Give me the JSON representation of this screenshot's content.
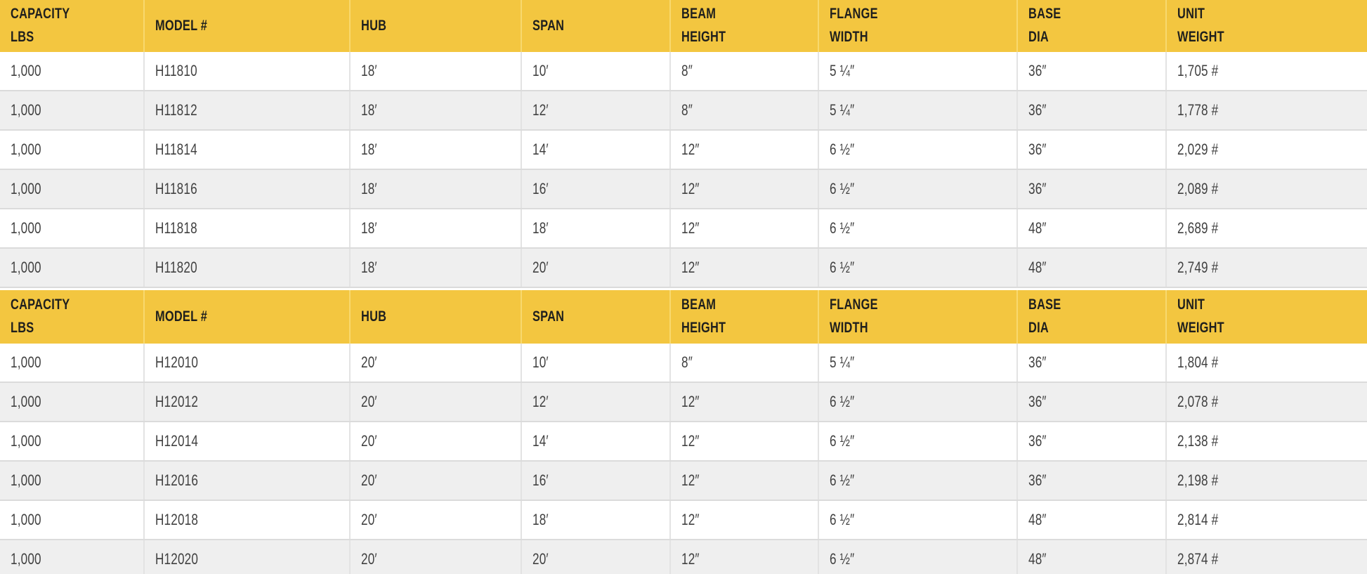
{
  "colors": {
    "header_bg": "#F3C640",
    "header_text": "#1F1F1D",
    "row_bg": "#FFFFFF",
    "row_alt_bg": "#EFEFEF",
    "cell_text": "#414141",
    "grid_line": "#DBDBDB"
  },
  "table": {
    "columns": [
      {
        "id": "capacity",
        "label": "CAPACITY\nLBS"
      },
      {
        "id": "model",
        "label": "MODEL #"
      },
      {
        "id": "hub",
        "label": "HUB"
      },
      {
        "id": "span",
        "label": "SPAN"
      },
      {
        "id": "beam-height",
        "label": "BEAM\nHEIGHT"
      },
      {
        "id": "flange-width",
        "label": "FLANGE\nWIDTH"
      },
      {
        "id": "base-dia",
        "label": "BASE\nDIA"
      },
      {
        "id": "unit-weight",
        "label": "UNIT\nWEIGHT"
      }
    ],
    "sections": [
      {
        "rows": [
          [
            "1,000",
            "H11810",
            "18′",
            "10′",
            "8″",
            "5 ¼″",
            "36″",
            "1,705 #"
          ],
          [
            "1,000",
            "H11812",
            "18′",
            "12′",
            "8″",
            "5 ¼″",
            "36″",
            "1,778 #"
          ],
          [
            "1,000",
            "H11814",
            "18′",
            "14′",
            "12″",
            "6 ½″",
            "36″",
            "2,029 #"
          ],
          [
            "1,000",
            "H11816",
            "18′",
            "16′",
            "12″",
            "6 ½″",
            "36″",
            "2,089 #"
          ],
          [
            "1,000",
            "H11818",
            "18′",
            "18′",
            "12″",
            "6 ½″",
            "48″",
            "2,689 #"
          ],
          [
            "1,000",
            "H11820",
            "18′",
            "20′",
            "12″",
            "6 ½″",
            "48″",
            "2,749 #"
          ]
        ]
      },
      {
        "rows": [
          [
            "1,000",
            "H12010",
            "20′",
            "10′",
            "8″",
            "5 ¼″",
            "36″",
            "1,804 #"
          ],
          [
            "1,000",
            "H12012",
            "20′",
            "12′",
            "12″",
            "6 ½″",
            "36″",
            "2,078 #"
          ],
          [
            "1,000",
            "H12014",
            "20′",
            "14′",
            "12″",
            "6 ½″",
            "36″",
            "2,138 #"
          ],
          [
            "1,000",
            "H12016",
            "20′",
            "16′",
            "12″",
            "6 ½″",
            "36″",
            "2,198 #"
          ],
          [
            "1,000",
            "H12018",
            "20′",
            "18′",
            "12″",
            "6 ½″",
            "48″",
            "2,814 #"
          ],
          [
            "1,000",
            "H12020",
            "20′",
            "20′",
            "12″",
            "6 ½″",
            "48″",
            "2,874 #"
          ]
        ]
      }
    ]
  }
}
